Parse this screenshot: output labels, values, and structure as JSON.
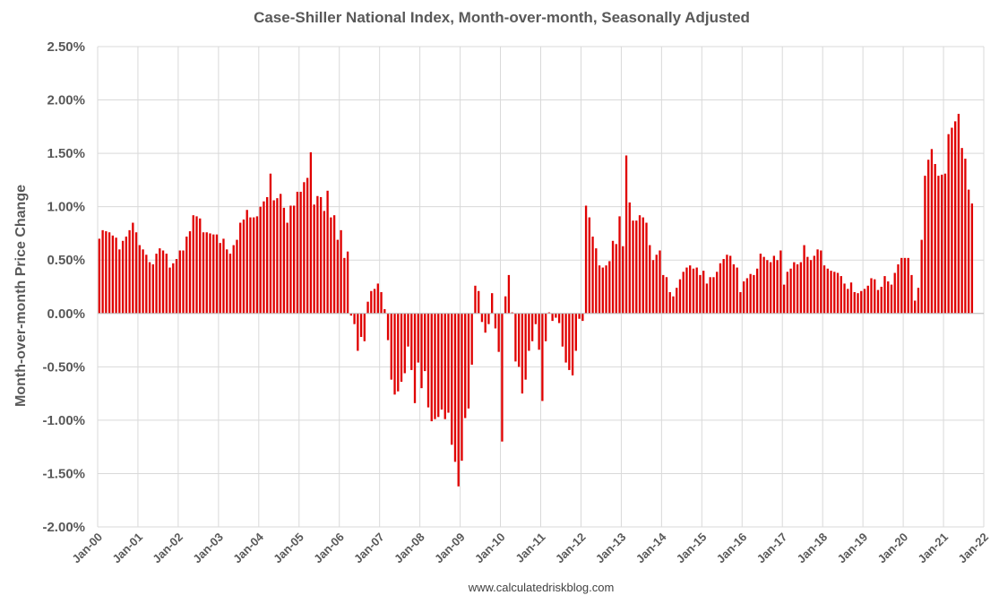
{
  "chart_data": {
    "type": "bar",
    "title": "Case-Shiller National Index, Month-over-month, Seasonally Adjusted",
    "ylabel": "Month-over-month Price Change",
    "source": "www.calculatedriskblog.com",
    "ylim": [
      -2.0,
      2.5
    ],
    "yticks": [
      "2.50%",
      "2.00%",
      "1.50%",
      "1.00%",
      "0.50%",
      "0.00%",
      "-0.50%",
      "-1.00%",
      "-1.50%",
      "-2.00%"
    ],
    "ytick_values": [
      2.5,
      2.0,
      1.5,
      1.0,
      0.5,
      0.0,
      -0.5,
      -1.0,
      -1.5,
      -2.0
    ],
    "xticks": [
      "Jan-00",
      "Jan-01",
      "Jan-02",
      "Jan-03",
      "Jan-04",
      "Jan-05",
      "Jan-06",
      "Jan-07",
      "Jan-08",
      "Jan-09",
      "Jan-10",
      "Jan-11",
      "Jan-12",
      "Jan-13",
      "Jan-14",
      "Jan-15",
      "Jan-16",
      "Jan-17",
      "Jan-18",
      "Jan-19",
      "Jan-20",
      "Jan-21",
      "Jan-22"
    ],
    "grid": true,
    "legend": "none",
    "bar_color": "#e00000",
    "x_start": "Jan-00",
    "unit": "percent month-over-month",
    "values": [
      0.7,
      0.78,
      0.77,
      0.76,
      0.73,
      0.71,
      0.6,
      0.68,
      0.72,
      0.78,
      0.85,
      0.76,
      0.64,
      0.6,
      0.55,
      0.48,
      0.46,
      0.56,
      0.61,
      0.59,
      0.56,
      0.43,
      0.47,
      0.51,
      0.59,
      0.59,
      0.72,
      0.77,
      0.92,
      0.91,
      0.89,
      0.76,
      0.76,
      0.75,
      0.74,
      0.74,
      0.66,
      0.7,
      0.6,
      0.56,
      0.64,
      0.69,
      0.85,
      0.88,
      0.97,
      0.9,
      0.9,
      0.91,
      1.0,
      1.05,
      1.09,
      1.31,
      1.06,
      1.08,
      1.12,
      0.99,
      0.85,
      1.01,
      1.01,
      1.14,
      1.14,
      1.23,
      1.27,
      1.51,
      1.02,
      1.1,
      1.09,
      0.96,
      1.15,
      0.9,
      0.92,
      0.69,
      0.78,
      0.52,
      0.58,
      -0.02,
      -0.1,
      -0.35,
      -0.22,
      -0.26,
      0.11,
      0.21,
      0.23,
      0.28,
      0.2,
      0.04,
      -0.25,
      -0.62,
      -0.76,
      -0.73,
      -0.64,
      -0.56,
      -0.31,
      -0.53,
      -0.84,
      -0.46,
      -0.7,
      -0.54,
      -0.88,
      -1.01,
      -0.99,
      -0.97,
      -0.9,
      -0.99,
      -0.93,
      -1.23,
      -1.39,
      -1.62,
      -1.38,
      -0.98,
      -0.89,
      -0.48,
      0.26,
      0.21,
      -0.08,
      -0.18,
      -0.1,
      0.19,
      -0.14,
      -0.36,
      -1.2,
      0.16,
      0.36,
      0.01,
      -0.45,
      -0.5,
      -0.75,
      -0.62,
      -0.35,
      -0.26,
      -0.1,
      -0.34,
      -0.82,
      -0.26,
      0.01,
      -0.07,
      -0.04,
      -0.09,
      -0.31,
      -0.46,
      -0.53,
      -0.58,
      -0.35,
      -0.05,
      -0.07,
      1.01,
      0.9,
      0.72,
      0.61,
      0.45,
      0.43,
      0.45,
      0.49,
      0.68,
      0.65,
      0.91,
      0.63,
      1.48,
      1.04,
      0.87,
      0.87,
      0.92,
      0.9,
      0.85,
      0.64,
      0.5,
      0.55,
      0.59,
      0.36,
      0.34,
      0.2,
      0.16,
      0.24,
      0.32,
      0.39,
      0.43,
      0.45,
      0.42,
      0.43,
      0.36,
      0.4,
      0.28,
      0.34,
      0.34,
      0.39,
      0.47,
      0.51,
      0.55,
      0.54,
      0.46,
      0.43,
      0.2,
      0.3,
      0.33,
      0.37,
      0.36,
      0.42,
      0.56,
      0.53,
      0.5,
      0.48,
      0.54,
      0.5,
      0.59,
      0.27,
      0.39,
      0.42,
      0.48,
      0.46,
      0.48,
      0.64,
      0.53,
      0.5,
      0.54,
      0.6,
      0.59,
      0.45,
      0.42,
      0.4,
      0.39,
      0.38,
      0.35,
      0.28,
      0.23,
      0.29,
      0.2,
      0.19,
      0.21,
      0.23,
      0.26,
      0.33,
      0.32,
      0.22,
      0.25,
      0.35,
      0.3,
      0.27,
      0.38,
      0.46,
      0.52,
      0.52,
      0.52,
      0.36,
      0.12,
      0.24,
      0.69,
      1.29,
      1.44,
      1.54,
      1.4,
      1.29,
      1.3,
      1.31,
      1.68,
      1.74,
      1.8,
      1.87,
      1.55,
      1.45,
      1.16,
      1.03
    ]
  }
}
